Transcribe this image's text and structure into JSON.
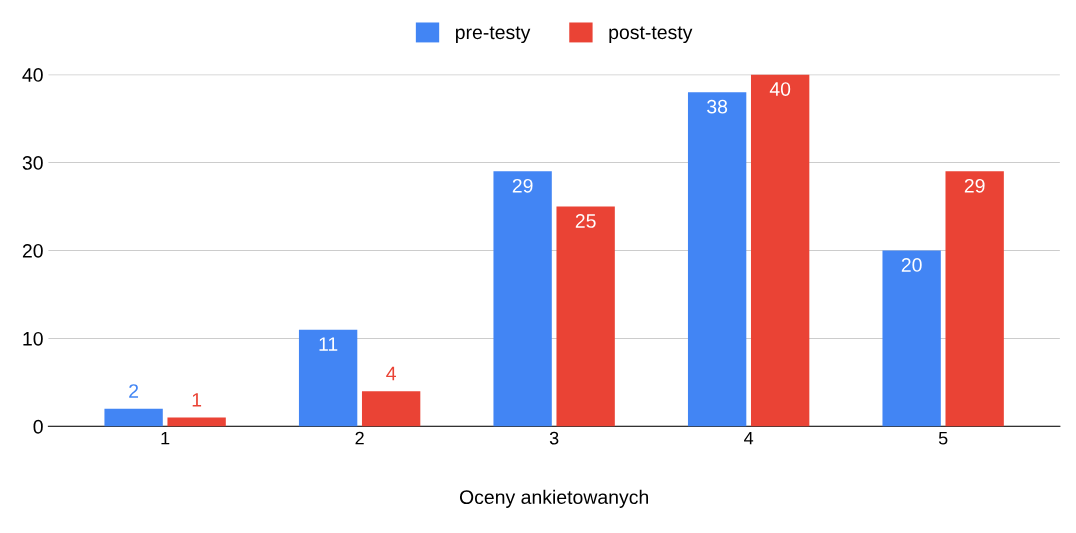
{
  "chart_data": {
    "type": "bar",
    "xlabel": "Oceny ankietowanych",
    "categories": [
      "1",
      "2",
      "3",
      "4",
      "5"
    ],
    "series": [
      {
        "name": "pre-testy",
        "color": "#4285f4",
        "values": [
          2,
          11,
          29,
          38,
          20
        ]
      },
      {
        "name": "post-testy",
        "color": "#ea4335",
        "values": [
          1,
          4,
          25,
          40,
          29
        ]
      }
    ],
    "ylim": [
      0,
      40
    ],
    "yticks": [
      0,
      10,
      20,
      30,
      40
    ],
    "grid": "y",
    "legend": "top",
    "data_labels": true
  }
}
